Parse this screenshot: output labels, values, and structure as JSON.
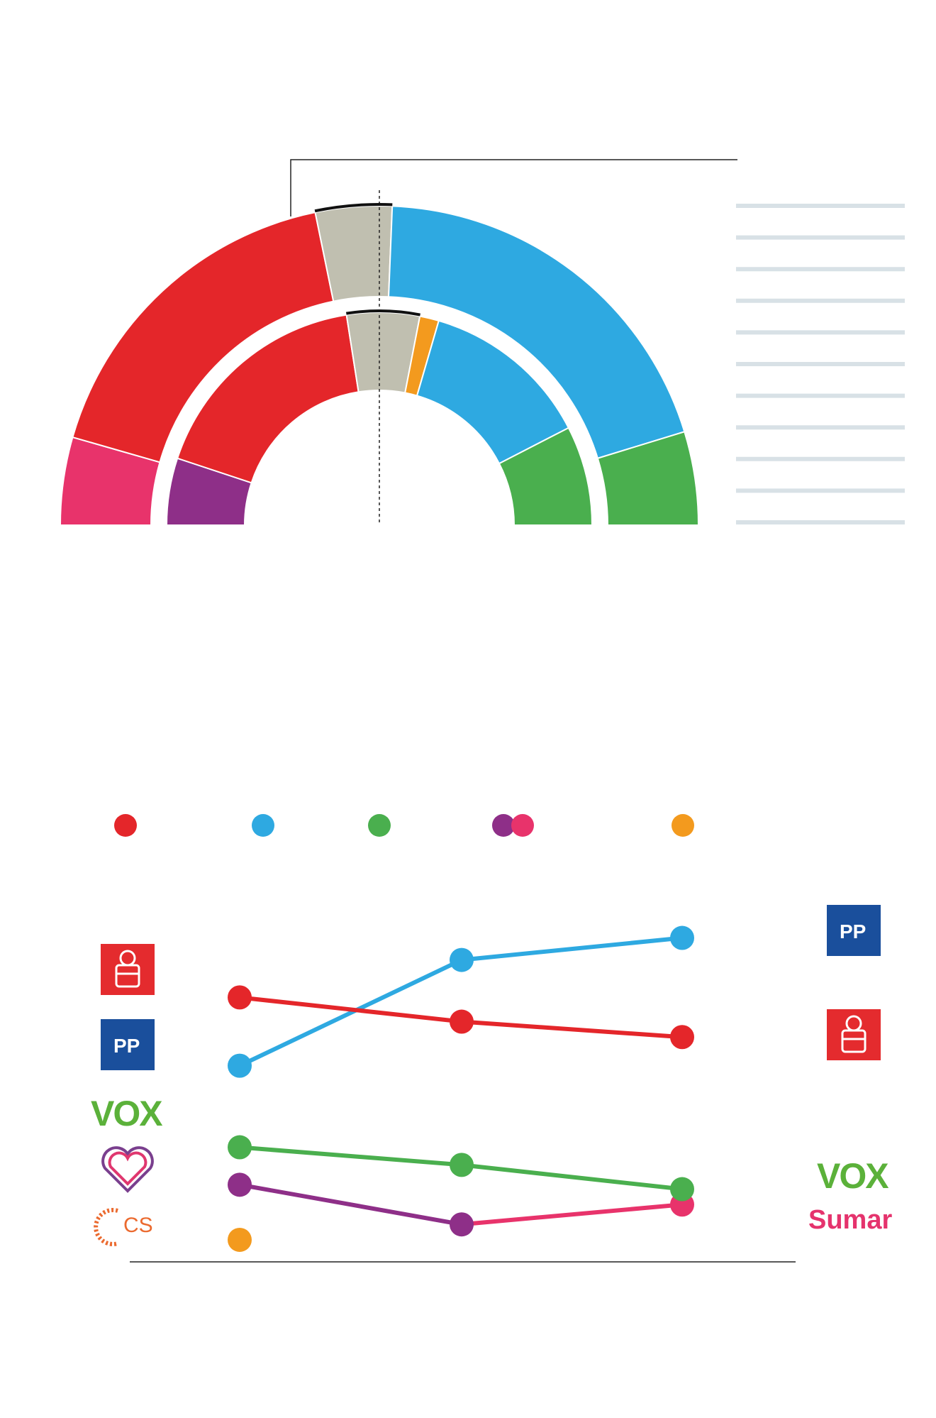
{
  "colors": {
    "psoe": "#e4262a",
    "pp": "#2ea9e1",
    "vox": "#4aaf4e",
    "podemos": "#8e2f88",
    "sumar": "#e8336b",
    "cs": "#f39a1e",
    "other": "#c0bfb0",
    "gridline": "#d8e1e6",
    "axis": "#222222"
  },
  "chart_data": [
    {
      "type": "pie",
      "subtype": "parliament-hemicycle-outer",
      "note_values": "seat shares estimated from arc angles, ordered left to right",
      "slices": [
        {
          "party": "sumar",
          "value": 31
        },
        {
          "party": "psoe",
          "value": 121
        },
        {
          "party": "other",
          "value": 27
        },
        {
          "party": "pp",
          "value": 137
        },
        {
          "party": "vox",
          "value": 33
        }
      ]
    },
    {
      "type": "pie",
      "subtype": "parliament-hemicycle-inner",
      "slices": [
        {
          "party": "podemos",
          "value": 35
        },
        {
          "party": "psoe",
          "value": 120
        },
        {
          "party": "other",
          "value": 38
        },
        {
          "party": "cs",
          "value": 10
        },
        {
          "party": "pp",
          "value": 89
        },
        {
          "party": "vox",
          "value": 52
        }
      ]
    },
    {
      "type": "line",
      "series": [
        {
          "party": "pp",
          "values": [
            89,
            137,
            147
          ]
        },
        {
          "party": "psoe",
          "values": [
            120,
            109,
            102
          ]
        },
        {
          "party": "vox",
          "values": [
            52,
            44,
            33
          ]
        },
        {
          "party": "podemos",
          "values": [
            35,
            17,
            null
          ]
        },
        {
          "party": "sumar",
          "values": [
            null,
            17,
            26
          ]
        },
        {
          "party": "cs",
          "values": [
            10,
            null,
            null
          ]
        }
      ],
      "ylim": [
        0,
        190
      ]
    }
  ],
  "legend_dots": [
    "psoe",
    "pp",
    "vox",
    "podemos_sumar",
    "cs"
  ],
  "logos_left": [
    "psoe-logo",
    "pp-logo",
    "vox-logo",
    "podemos-logo",
    "cs-logo"
  ],
  "logos_right": [
    "pp-logo",
    "psoe-logo",
    "vox-logo",
    "sumar-logo"
  ],
  "logo_text": {
    "pp": "PP",
    "vox": "VOX",
    "cs": "CS",
    "sumar": "Sumar"
  }
}
